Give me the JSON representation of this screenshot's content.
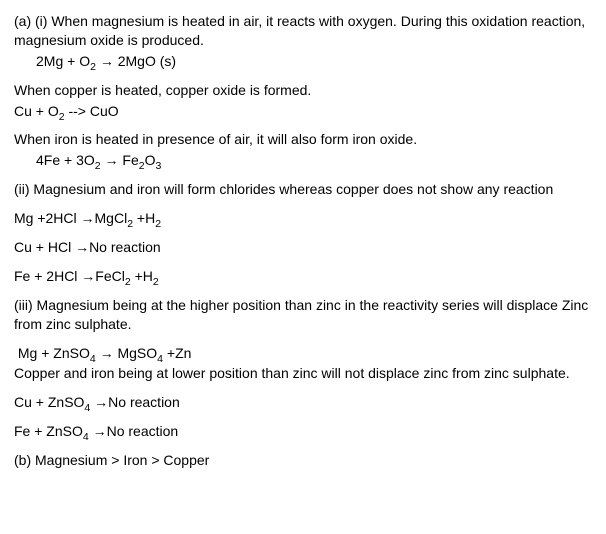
{
  "section_a_i": {
    "intro": "(a) (i) When magnesium is heated in air, it reacts with oxygen. During this oxidation reaction, magnesium oxide is produced.",
    "eq1_parts": [
      "2Mg + O",
      "2",
      " → 2MgO (s)"
    ],
    "copper_text": "When copper is heated, copper oxide is formed.",
    "eq2_parts": [
      "Cu + O",
      "2",
      " --> CuO"
    ],
    "iron_text": "When iron is heated in presence of air, it will also form iron oxide.",
    "eq3_parts": [
      "4Fe + 3O",
      "2",
      " → Fe",
      "2",
      "O",
      "3"
    ]
  },
  "section_a_ii": {
    "intro": "(ii) Magnesium and iron will form chlorides whereas copper does not show any reaction",
    "eq1_parts": [
      "Mg +2HCl →MgCl",
      "2",
      " +H",
      "2"
    ],
    "eq2": "Cu + HCl →No reaction",
    "eq3_parts": [
      "Fe + 2HCl →FeCl",
      "2",
      " +H",
      "2"
    ]
  },
  "section_a_iii": {
    "intro": "(iii) Magnesium being at the higher position than zinc in the reactivity series will displace Zinc from zinc sulphate.",
    "eq1_parts": [
      "Mg + ZnSO",
      "4",
      " → MgSO",
      "4",
      " +Zn"
    ],
    "mid_text": "Copper and iron being at lower position than zinc will not displace zinc from zinc sulphate.",
    "eq2_parts": [
      "Cu + ZnSO",
      "4",
      " →No reaction"
    ],
    "eq3_parts": [
      "Fe + ZnSO",
      "4",
      " →No reaction"
    ]
  },
  "section_b": "(b) Magnesium > Iron > Copper"
}
